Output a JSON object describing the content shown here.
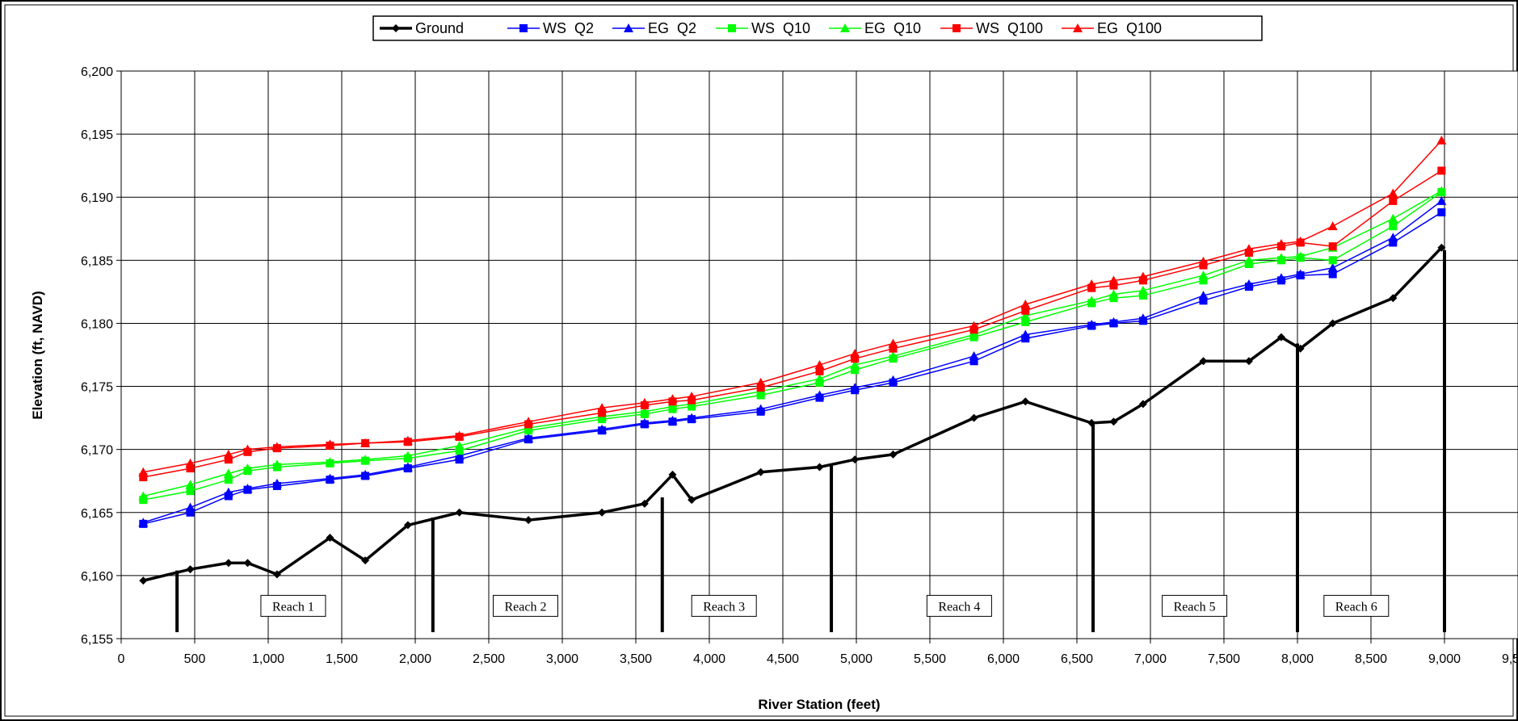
{
  "chart_data": {
    "type": "line",
    "xlabel": "River Station (feet)",
    "ylabel": "Elevation (ft, NAVD)",
    "xlim": [
      0,
      9500
    ],
    "ylim": [
      6155,
      6200
    ],
    "x_ticks": [
      "0",
      "500",
      "1,000",
      "1,500",
      "2,000",
      "2,500",
      "3,000",
      "3,500",
      "4,000",
      "4,500",
      "5,000",
      "5,500",
      "6,000",
      "6,500",
      "7,000",
      "7,500",
      "8,000",
      "8,500",
      "9,000",
      "9,500"
    ],
    "y_ticks": [
      "6,155",
      "6,160",
      "6,165",
      "6,170",
      "6,175",
      "6,180",
      "6,185",
      "6,190",
      "6,195",
      "6,200"
    ],
    "grid": true,
    "legend_position": "top",
    "series": [
      {
        "name": "Ground",
        "color": "#000000",
        "marker": "diamond",
        "width": 3.5,
        "x": [
          150,
          470,
          730,
          860,
          1060,
          1420,
          1660,
          1950,
          2300,
          2770,
          3270,
          3560,
          3750,
          3880,
          4350,
          4750,
          4990,
          5250,
          5800,
          6150,
          6600,
          6750,
          6950,
          7360,
          7670,
          7890,
          8020,
          8240,
          8650,
          8980
        ],
        "y": [
          6159.6,
          6160.5,
          6161.0,
          6161.0,
          6160.1,
          6163.0,
          6161.2,
          6164.0,
          6165.0,
          6164.4,
          6165.0,
          6165.7,
          6168.0,
          6166.0,
          6168.2,
          6168.6,
          6169.2,
          6169.6,
          6172.5,
          6173.8,
          6172.1,
          6172.2,
          6173.6,
          6177.0,
          6177.0,
          6178.9,
          6178.0,
          6180.0,
          6182.0,
          6186.0
        ]
      },
      {
        "name": "WS  Q2",
        "color": "#0000ff",
        "marker": "square",
        "width": 1.5,
        "x": [
          150,
          470,
          730,
          860,
          1060,
          1420,
          1660,
          1950,
          2300,
          2770,
          3270,
          3560,
          3750,
          3880,
          4350,
          4750,
          4990,
          5250,
          5800,
          6150,
          6600,
          6750,
          6950,
          7360,
          7670,
          7890,
          8020,
          8240,
          8650,
          8980
        ],
        "y": [
          6164.1,
          6165.0,
          6166.3,
          6166.8,
          6167.1,
          6167.6,
          6167.9,
          6168.5,
          6169.2,
          6170.8,
          6171.5,
          6172.0,
          6172.2,
          6172.4,
          6173.0,
          6174.1,
          6174.7,
          6175.3,
          6177.0,
          6178.8,
          6179.8,
          6180.0,
          6180.2,
          6181.8,
          6182.9,
          6183.4,
          6183.8,
          6183.9,
          6186.4,
          6188.8
        ]
      },
      {
        "name": "EG  Q2",
        "color": "#0000ff",
        "marker": "triangle",
        "width": 1.5,
        "x": [
          150,
          470,
          730,
          860,
          1060,
          1420,
          1660,
          1950,
          2300,
          2770,
          3270,
          3560,
          3750,
          3880,
          4350,
          4750,
          4990,
          5250,
          5800,
          6150,
          6600,
          6750,
          6950,
          7360,
          7670,
          7890,
          8020,
          8240,
          8650,
          8980
        ],
        "y": [
          6164.2,
          6165.4,
          6166.6,
          6166.9,
          6167.3,
          6167.7,
          6168.0,
          6168.6,
          6169.5,
          6170.9,
          6171.6,
          6172.1,
          6172.3,
          6172.5,
          6173.2,
          6174.3,
          6174.9,
          6175.5,
          6177.4,
          6179.1,
          6179.9,
          6180.1,
          6180.4,
          6182.2,
          6183.1,
          6183.6,
          6183.9,
          6184.4,
          6186.8,
          6189.7
        ]
      },
      {
        "name": "WS  Q10",
        "color": "#00ff00",
        "marker": "square",
        "width": 1.5,
        "x": [
          150,
          470,
          730,
          860,
          1060,
          1420,
          1660,
          1950,
          2300,
          2770,
          3270,
          3560,
          3750,
          3880,
          4350,
          4750,
          4990,
          5250,
          5800,
          6150,
          6600,
          6750,
          6950,
          7360,
          7670,
          7890,
          8020,
          8240,
          8650,
          8980
        ],
        "y": [
          6166.0,
          6166.7,
          6167.6,
          6168.3,
          6168.6,
          6168.9,
          6169.1,
          6169.3,
          6169.9,
          6171.5,
          6172.4,
          6172.8,
          6173.2,
          6173.4,
          6174.3,
          6175.3,
          6176.3,
          6177.2,
          6178.9,
          6180.1,
          6181.6,
          6182.0,
          6182.2,
          6183.4,
          6184.7,
          6185.0,
          6185.2,
          6185.0,
          6187.7,
          6190.4
        ]
      },
      {
        "name": "EG  Q10",
        "color": "#00ff00",
        "marker": "triangle",
        "width": 1.5,
        "x": [
          150,
          470,
          730,
          860,
          1060,
          1420,
          1660,
          1950,
          2300,
          2770,
          3270,
          3560,
          3750,
          3880,
          4350,
          4750,
          4990,
          5250,
          5800,
          6150,
          6600,
          6750,
          6950,
          7360,
          7670,
          7890,
          8020,
          8240,
          8650,
          8980
        ],
        "y": [
          6166.3,
          6167.2,
          6168.1,
          6168.5,
          6168.8,
          6169.0,
          6169.2,
          6169.5,
          6170.3,
          6171.7,
          6172.6,
          6173.0,
          6173.4,
          6173.6,
          6174.6,
          6175.6,
          6176.7,
          6177.4,
          6179.1,
          6180.6,
          6181.8,
          6182.3,
          6182.6,
          6183.8,
          6185.0,
          6185.2,
          6185.3,
          6186.0,
          6188.3,
          6190.5
        ]
      },
      {
        "name": "WS  Q100",
        "color": "#ff0000",
        "marker": "square",
        "width": 1.5,
        "x": [
          150,
          470,
          730,
          860,
          1060,
          1420,
          1660,
          1950,
          2300,
          2770,
          3270,
          3560,
          3750,
          3880,
          4350,
          4750,
          4990,
          5250,
          5800,
          6150,
          6600,
          6750,
          6950,
          7360,
          7670,
          7890,
          8020,
          8240,
          8650,
          8980
        ],
        "y": [
          6167.8,
          6168.5,
          6169.2,
          6169.8,
          6170.1,
          6170.3,
          6170.5,
          6170.6,
          6171.0,
          6172.0,
          6172.9,
          6173.5,
          6173.8,
          6173.9,
          6174.9,
          6176.2,
          6177.2,
          6178.0,
          6179.5,
          6181.0,
          6182.8,
          6183.0,
          6183.4,
          6184.6,
          6185.6,
          6186.1,
          6186.4,
          6186.1,
          6189.7,
          6192.1
        ]
      },
      {
        "name": "EG  Q100",
        "color": "#ff0000",
        "marker": "triangle",
        "width": 1.5,
        "x": [
          150,
          470,
          730,
          860,
          1060,
          1420,
          1660,
          1950,
          2300,
          2770,
          3270,
          3560,
          3750,
          3880,
          4350,
          4750,
          4990,
          5250,
          5800,
          6150,
          6600,
          6750,
          6950,
          7360,
          7670,
          7890,
          8020,
          8240,
          8650,
          8980
        ],
        "y": [
          6168.2,
          6168.9,
          6169.6,
          6170.0,
          6170.2,
          6170.4,
          6170.5,
          6170.7,
          6171.1,
          6172.2,
          6173.3,
          6173.7,
          6174.0,
          6174.2,
          6175.3,
          6176.7,
          6177.6,
          6178.4,
          6179.8,
          6181.5,
          6183.1,
          6183.4,
          6183.7,
          6184.9,
          6185.9,
          6186.3,
          6186.5,
          6187.7,
          6190.3,
          6194.5
        ]
      }
    ],
    "reach_markers": [
      {
        "x": 380,
        "y_top": 6160.4
      },
      {
        "x": 2120,
        "y_top": 6164.6
      },
      {
        "x": 3680,
        "y_top": 6166.2
      },
      {
        "x": 4830,
        "y_top": 6168.7
      },
      {
        "x": 6610,
        "y_top": 6172.2
      },
      {
        "x": 8000,
        "y_top": 6178.4
      },
      {
        "x": 9000,
        "y_top": 6185.8
      }
    ],
    "annotations": [
      {
        "text": "Reach 1",
        "x": 1170,
        "y": 6157.6
      },
      {
        "text": "Reach 2",
        "x": 2750,
        "y": 6157.6
      },
      {
        "text": "Reach 3",
        "x": 4100,
        "y": 6157.6
      },
      {
        "text": "Reach 4",
        "x": 5700,
        "y": 6157.6
      },
      {
        "text": "Reach 5",
        "x": 7300,
        "y": 6157.6
      },
      {
        "text": "Reach 6",
        "x": 8400,
        "y": 6157.6
      }
    ]
  }
}
